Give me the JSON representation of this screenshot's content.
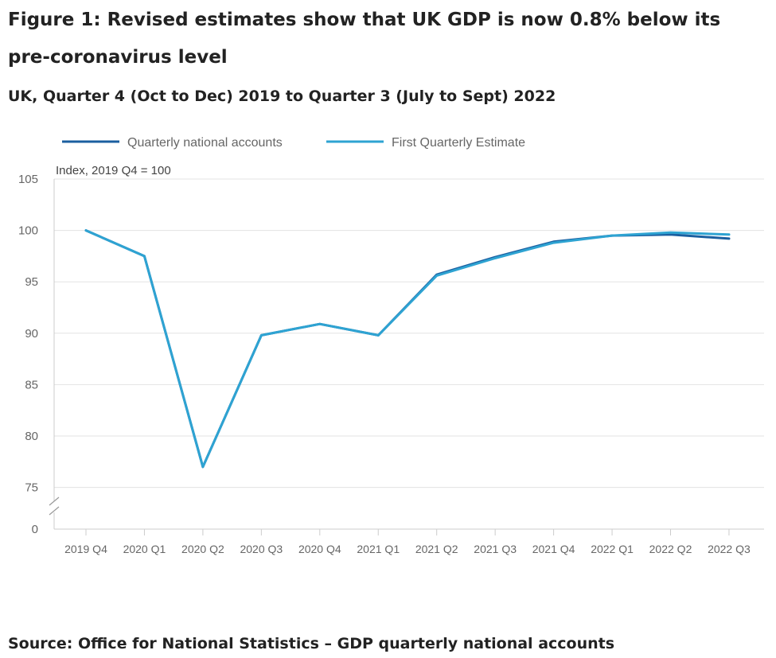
{
  "title": "Figure 1: Revised estimates show that UK GDP is now 0.8% below its pre-coronavirus level",
  "subtitle": "UK, Quarter 4 (Oct to Dec) 2019 to Quarter 3 (July to Sept) 2022",
  "source": "Source: Office for National Statistics – GDP quarterly national accounts",
  "colors": {
    "quarterly_national_accounts": "#1b5fa0",
    "first_quarterly_estimate": "#2ea3d2",
    "grid": "#e3e3e3",
    "axis_text": "#666666"
  },
  "chart_data": {
    "type": "line",
    "title": "Figure 1: Revised estimates show that UK GDP is now 0.8% below its pre-coronavirus level",
    "subtitle": "UK, Quarter 4 (Oct to Dec) 2019 to Quarter 3 (July to Sept) 2022",
    "ylabel": "Index, 2019 Q4 = 100",
    "xlabel": "",
    "categories": [
      "2019 Q4",
      "2020 Q1",
      "2020 Q2",
      "2020 Q3",
      "2020 Q4",
      "2021 Q1",
      "2021 Q2",
      "2021 Q3",
      "2021 Q4",
      "2022 Q1",
      "2022 Q2",
      "2022 Q3"
    ],
    "yticks": [
      0,
      75,
      80,
      85,
      90,
      95,
      100,
      105
    ],
    "ylim": [
      75,
      105
    ],
    "axis_break": true,
    "grid": true,
    "legend_position": "top",
    "series": [
      {
        "name": "Quarterly national accounts",
        "values": [
          100.0,
          97.5,
          77.0,
          89.8,
          90.9,
          89.8,
          95.7,
          97.4,
          98.9,
          99.5,
          99.6,
          99.2
        ]
      },
      {
        "name": "First Quarterly Estimate",
        "values": [
          100.0,
          97.5,
          77.0,
          89.8,
          90.9,
          89.8,
          95.6,
          97.3,
          98.8,
          99.5,
          99.8,
          99.6
        ]
      }
    ]
  }
}
